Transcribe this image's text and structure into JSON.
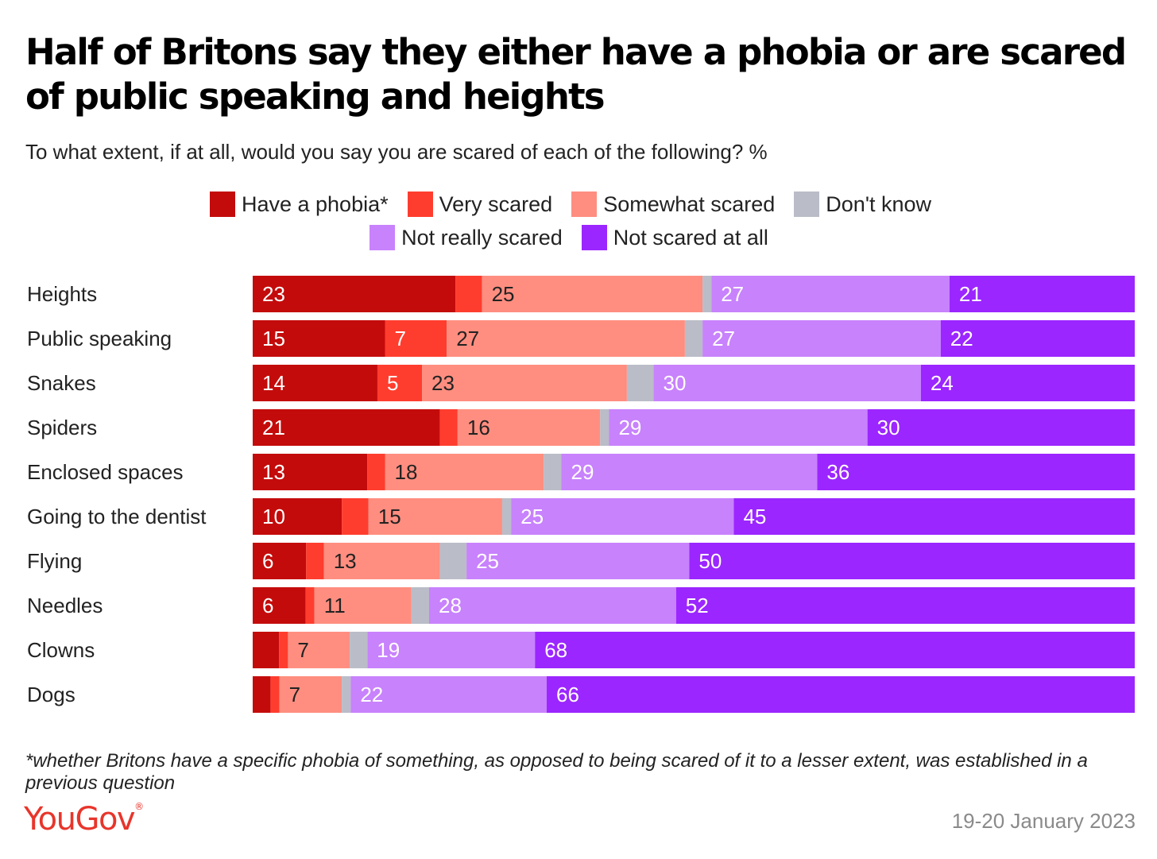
{
  "title": "Half of Britons say they either have a phobia or are scared of public speaking and heights",
  "subtitle": "To what extent, if at all, would you say you are scared of each of the following? %",
  "footnote": "*whether Britons have a specific phobia of something, as opposed to being scared of it to a lesser extent, was established in a previous question",
  "brand": "YouGov",
  "date": "19-20 January 2023",
  "legend": [
    {
      "name": "Have a phobia*",
      "color": "#c40b0b"
    },
    {
      "name": "Very scared",
      "color": "#ff3d2e"
    },
    {
      "name": "Somewhat scared",
      "color": "#ff8e80"
    },
    {
      "name": "Don't know",
      "color": "#babcc7"
    },
    {
      "name": "Not really scared",
      "color": "#c882fc"
    },
    {
      "name": "Not scared at all",
      "color": "#9b26ff"
    }
  ],
  "chart_data": {
    "type": "bar",
    "orientation": "horizontal",
    "stacked": true,
    "title": "Half of Britons say they either have a phobia or are scared of public speaking and heights",
    "subtitle": "To what extent, if at all, would you say you are scared of each of the following? %",
    "categories": [
      "Heights",
      "Public speaking",
      "Snakes",
      "Spiders",
      "Enclosed spaces",
      "Going to the dentist",
      "Flying",
      "Needles",
      "Clowns",
      "Dogs"
    ],
    "series": [
      {
        "name": "Have a phobia*",
        "color": "#c40b0b",
        "values": [
          23,
          15,
          14,
          21,
          13,
          10,
          6,
          6,
          3,
          2
        ]
      },
      {
        "name": "Very scared",
        "color": "#ff3d2e",
        "values": [
          3,
          7,
          5,
          2,
          2,
          3,
          2,
          1,
          1,
          1
        ]
      },
      {
        "name": "Somewhat scared",
        "color": "#ff8e80",
        "values": [
          25,
          27,
          23,
          16,
          18,
          15,
          13,
          11,
          7,
          7
        ]
      },
      {
        "name": "Don't know",
        "color": "#babcc7",
        "values": [
          1,
          2,
          3,
          1,
          2,
          1,
          3,
          2,
          2,
          1
        ]
      },
      {
        "name": "Not really scared",
        "color": "#c882fc",
        "values": [
          27,
          27,
          30,
          29,
          29,
          25,
          25,
          28,
          19,
          22
        ]
      },
      {
        "name": "Not scared at all",
        "color": "#9b26ff",
        "values": [
          21,
          22,
          24,
          30,
          36,
          45,
          50,
          52,
          68,
          66
        ]
      }
    ],
    "labels": [
      [
        "23",
        "",
        "25",
        "",
        "27",
        "21"
      ],
      [
        "15",
        "7",
        "27",
        "",
        "27",
        "22"
      ],
      [
        "14",
        "5",
        "23",
        "",
        "30",
        "24"
      ],
      [
        "21",
        "",
        "16",
        "",
        "29",
        "30"
      ],
      [
        "13",
        "",
        "18",
        "",
        "29",
        "36"
      ],
      [
        "10",
        "",
        "15",
        "",
        "25",
        "45"
      ],
      [
        "6",
        "",
        "13",
        "",
        "25",
        "50"
      ],
      [
        "6",
        "",
        "11",
        "",
        "28",
        "52"
      ],
      [
        "",
        "",
        "7",
        "",
        "19",
        "68"
      ],
      [
        "",
        "",
        "7",
        "",
        "22",
        "66"
      ]
    ],
    "xlim": [
      0,
      100
    ],
    "legend": "top-center",
    "grid": false
  }
}
